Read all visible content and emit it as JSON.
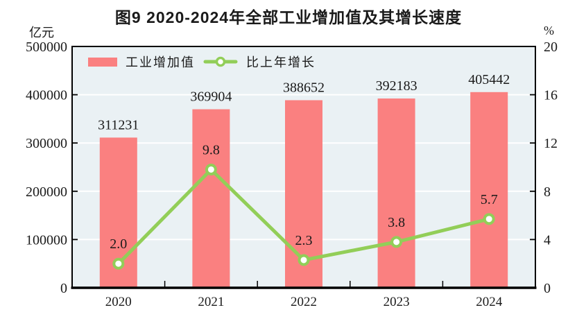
{
  "title": "图9  2020-2024年全部工业增加值及其增长速度",
  "legend": {
    "bar_label": "工业增加值",
    "line_label": "比上年增长"
  },
  "colors": {
    "bar": "#FA8080",
    "line": "#92CE58",
    "marker_fill": "#FFFFFF",
    "plot_bg": "#EAF1F4",
    "gridline": "#FFFFFF",
    "axis": "#000000",
    "text": "#1A1A1A"
  },
  "chart_data": {
    "type": "bar+line",
    "title": "图9  2020-2024年全部工业增加值及其增长速度",
    "categories": [
      "2020",
      "2021",
      "2022",
      "2023",
      "2024"
    ],
    "series": [
      {
        "name": "工业增加值",
        "type": "bar",
        "axis": "left",
        "values": [
          311231,
          369904,
          388652,
          392183,
          405442
        ]
      },
      {
        "name": "比上年增长",
        "type": "line",
        "axis": "right",
        "values": [
          2.0,
          9.8,
          2.3,
          3.8,
          5.7
        ]
      }
    ],
    "left_axis": {
      "unit": "亿元",
      "min": 0,
      "max": 500000,
      "ticks": [
        0,
        100000,
        200000,
        300000,
        400000,
        500000
      ]
    },
    "right_axis": {
      "unit": "%",
      "min": 0,
      "max": 20,
      "ticks": [
        0,
        4,
        8,
        12,
        16,
        20
      ]
    },
    "grid": "horizontal white gridlines",
    "legend_position": "top-left inside plot"
  }
}
